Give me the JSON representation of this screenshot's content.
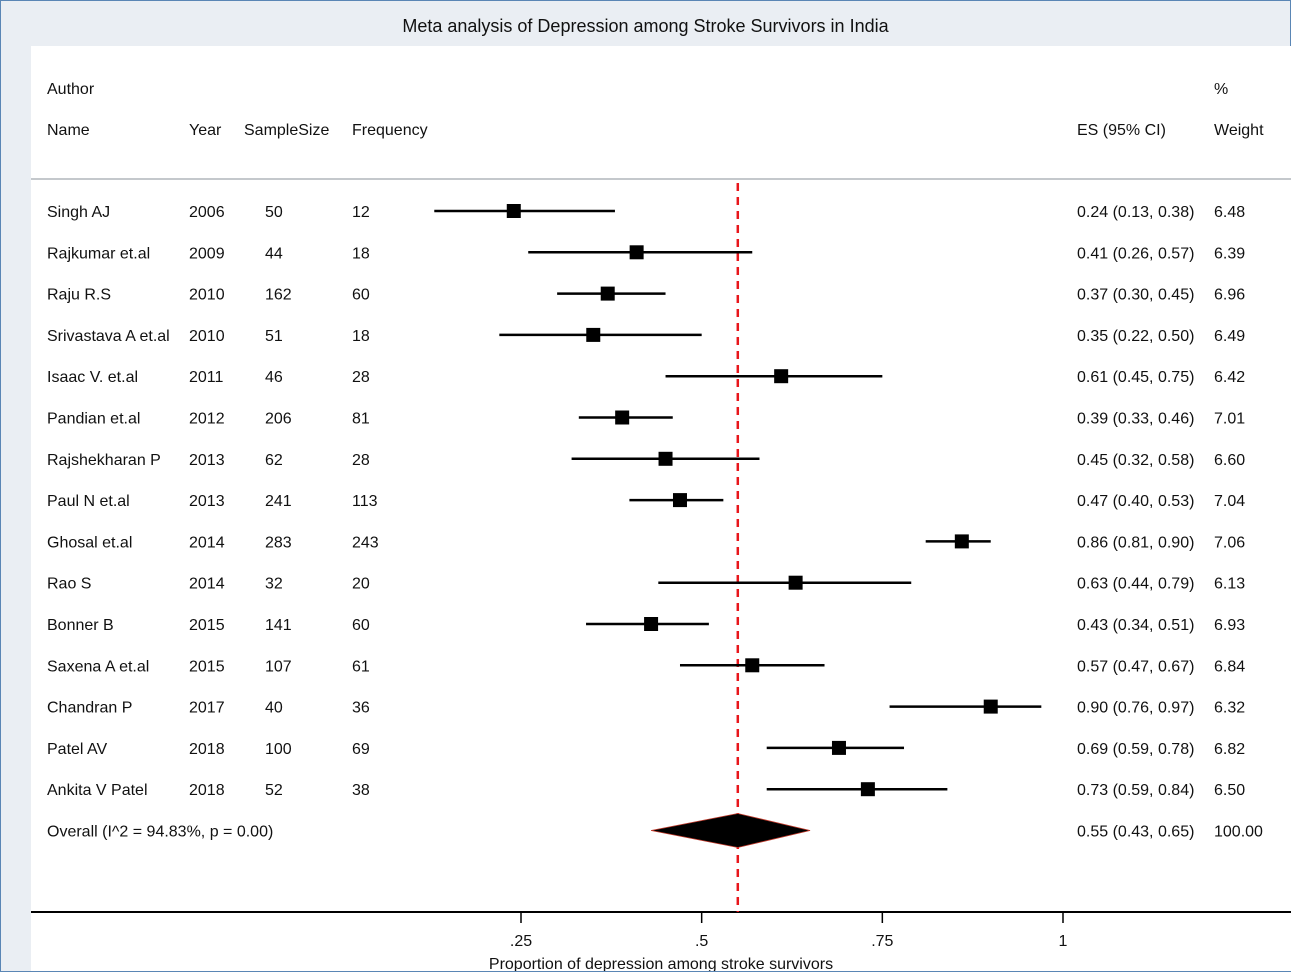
{
  "title": "Meta analysis of Depression among Stroke Survivors in India",
  "headers": {
    "author_top": "Author",
    "name": "Name",
    "year": "Year",
    "sample": "SampleSize",
    "freq": "Frequency",
    "es": "ES (95% CI)",
    "weight_top": "%",
    "weight": "Weight"
  },
  "chart_data": {
    "type": "forest",
    "title": "Meta analysis of Depression among Stroke Survivors in India",
    "xlabel": "Proportion of depression among stroke survivors",
    "xlim": [
      0.0,
      1.03
    ],
    "xticks": [
      ".25",
      ".5",
      ".75",
      "1"
    ],
    "xtick_values": [
      0.25,
      0.5,
      0.75,
      1.0
    ],
    "reference_line": 0.55,
    "studies": [
      {
        "name": "Singh AJ",
        "year": "2006",
        "n": "50",
        "freq": "12",
        "es": 0.24,
        "lo": 0.13,
        "hi": 0.38,
        "es_text": "0.24 (0.13, 0.38)",
        "weight": "6.48"
      },
      {
        "name": "Rajkumar et.al",
        "year": "2009",
        "n": "44",
        "freq": "18",
        "es": 0.41,
        "lo": 0.26,
        "hi": 0.57,
        "es_text": "0.41 (0.26, 0.57)",
        "weight": "6.39"
      },
      {
        "name": "Raju R.S",
        "year": "2010",
        "n": "162",
        "freq": "60",
        "es": 0.37,
        "lo": 0.3,
        "hi": 0.45,
        "es_text": "0.37 (0.30, 0.45)",
        "weight": "6.96"
      },
      {
        "name": "Srivastava A et.al",
        "year": "2010",
        "n": "51",
        "freq": "18",
        "es": 0.35,
        "lo": 0.22,
        "hi": 0.5,
        "es_text": "0.35 (0.22, 0.50)",
        "weight": "6.49"
      },
      {
        "name": "Isaac V. et.al",
        "year": "2011",
        "n": "46",
        "freq": "28",
        "es": 0.61,
        "lo": 0.45,
        "hi": 0.75,
        "es_text": "0.61 (0.45, 0.75)",
        "weight": "6.42"
      },
      {
        "name": "Pandian et.al",
        "year": "2012",
        "n": "206",
        "freq": "81",
        "es": 0.39,
        "lo": 0.33,
        "hi": 0.46,
        "es_text": "0.39 (0.33, 0.46)",
        "weight": "7.01"
      },
      {
        "name": "Rajshekharan P",
        "year": "2013",
        "n": "62",
        "freq": "28",
        "es": 0.45,
        "lo": 0.32,
        "hi": 0.58,
        "es_text": "0.45 (0.32, 0.58)",
        "weight": "6.60"
      },
      {
        "name": "Paul N et.al",
        "year": "2013",
        "n": "241",
        "freq": "113",
        "es": 0.47,
        "lo": 0.4,
        "hi": 0.53,
        "es_text": "0.47 (0.40, 0.53)",
        "weight": "7.04"
      },
      {
        "name": "Ghosal et.al",
        "year": "2014",
        "n": "283",
        "freq": "243",
        "es": 0.86,
        "lo": 0.81,
        "hi": 0.9,
        "es_text": "0.86 (0.81, 0.90)",
        "weight": "7.06"
      },
      {
        "name": "Rao S",
        "year": "2014",
        "n": "32",
        "freq": "20",
        "es": 0.63,
        "lo": 0.44,
        "hi": 0.79,
        "es_text": "0.63 (0.44, 0.79)",
        "weight": "6.13"
      },
      {
        "name": "Bonner B",
        "year": "2015",
        "n": "141",
        "freq": "60",
        "es": 0.43,
        "lo": 0.34,
        "hi": 0.51,
        "es_text": "0.43 (0.34, 0.51)",
        "weight": "6.93"
      },
      {
        "name": "Saxena A et.al",
        "year": "2015",
        "n": "107",
        "freq": "61",
        "es": 0.57,
        "lo": 0.47,
        "hi": 0.67,
        "es_text": "0.57 (0.47, 0.67)",
        "weight": "6.84"
      },
      {
        "name": "Chandran P",
        "year": "2017",
        "n": "40",
        "freq": "36",
        "es": 0.9,
        "lo": 0.76,
        "hi": 0.97,
        "es_text": "0.90 (0.76, 0.97)",
        "weight": "6.32"
      },
      {
        "name": "Patel AV",
        "year": "2018",
        "n": "100",
        "freq": "69",
        "es": 0.69,
        "lo": 0.59,
        "hi": 0.78,
        "es_text": "0.69 (0.59, 0.78)",
        "weight": "6.82"
      },
      {
        "name": "Ankita V Patel",
        "year": "2018",
        "n": "52",
        "freq": "38",
        "es": 0.73,
        "lo": 0.59,
        "hi": 0.84,
        "es_text": "0.73 (0.59, 0.84)",
        "weight": "6.50"
      }
    ],
    "overall": {
      "label": "Overall  (I^2 = 94.83%, p = 0.00)",
      "es": 0.55,
      "lo": 0.43,
      "hi": 0.65,
      "es_text": "0.55 (0.43, 0.65)",
      "weight": "100.00"
    },
    "colors": {
      "reference_line": "#e8161b",
      "markers": "#000000",
      "frame_border": "#5a86b5"
    }
  }
}
